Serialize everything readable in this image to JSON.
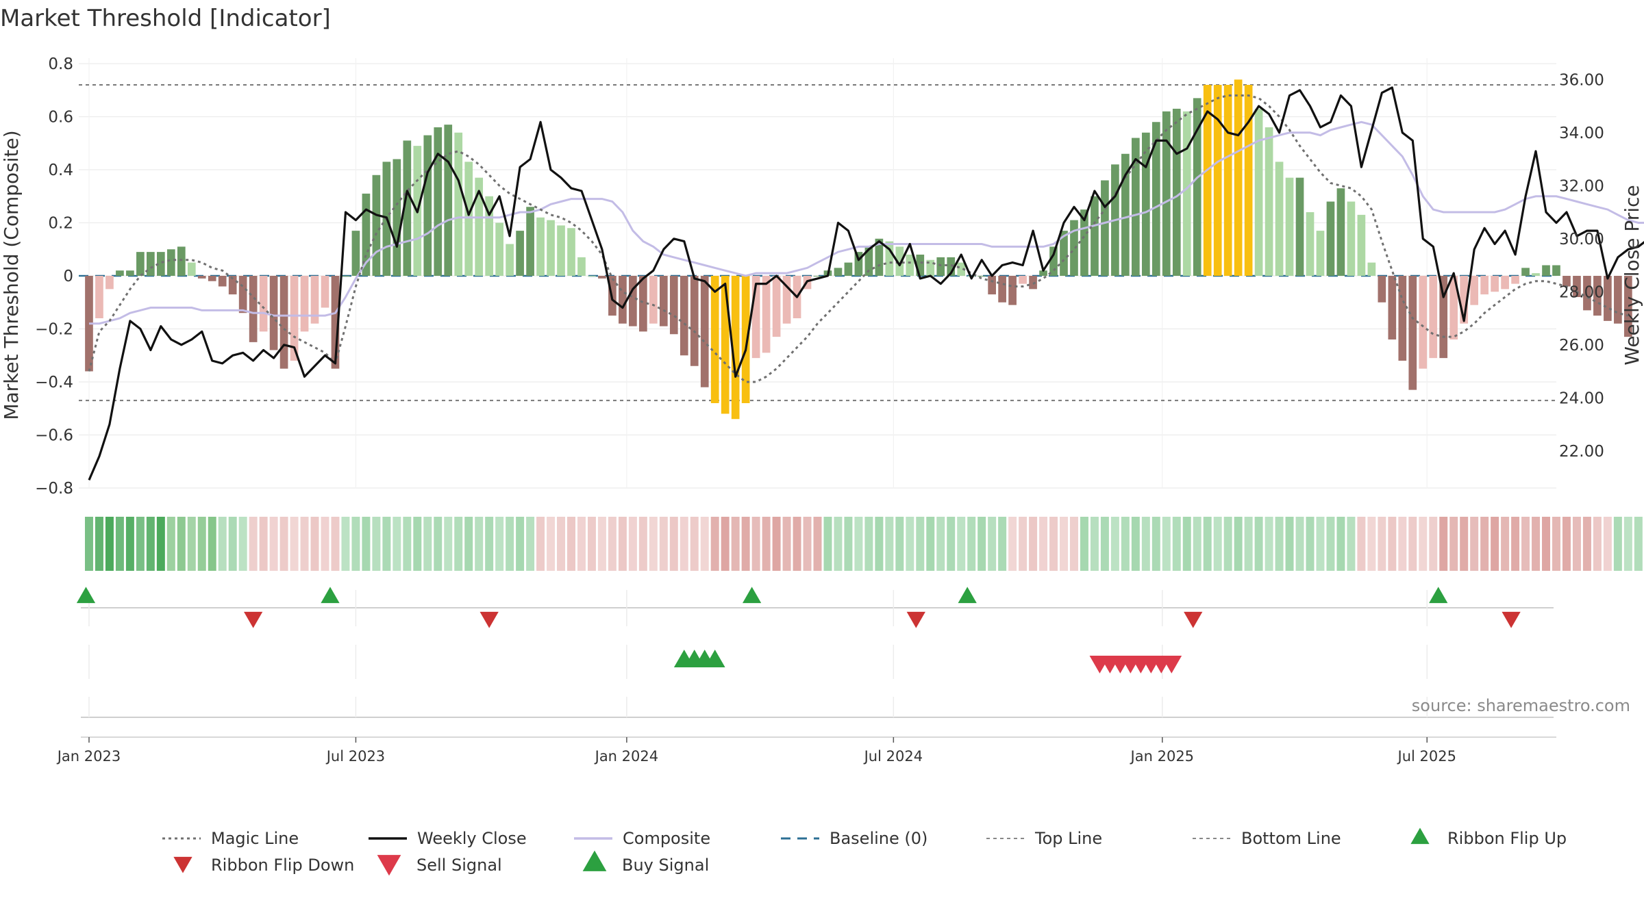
{
  "title": "Market Threshold [Indicator]",
  "source": "source: sharemaestro.com",
  "chart_data": {
    "type": "bar",
    "title": "Market Threshold [Indicator]",
    "y_left": {
      "label": "Market Threshold (Composite)",
      "range": [
        -0.8,
        0.8
      ],
      "ticks": [
        "0.8",
        "0.6",
        "0.4",
        "0.2",
        "0",
        "−0.2",
        "−0.4",
        "−0.6",
        "−0.8"
      ],
      "tick_values": [
        0.8,
        0.6,
        0.4,
        0.2,
        0,
        -0.2,
        -0.4,
        -0.6,
        -0.8
      ]
    },
    "y_right": {
      "label": "Weekly Close Price",
      "range": [
        20.6,
        36.6
      ],
      "ticks": [
        "36.00",
        "34.00",
        "32.00",
        "30.00",
        "28.00",
        "26.00",
        "24.00",
        "22.00"
      ],
      "tick_values": [
        36,
        34,
        32,
        30,
        28,
        26,
        24,
        22
      ]
    },
    "x_axis": {
      "start_week": -1,
      "end_week": 143,
      "ticks": [
        {
          "week": 0,
          "label": "Jan 2023"
        },
        {
          "week": 26,
          "label": "Jul 2023"
        },
        {
          "week": 52.4,
          "label": "Jan 2024"
        },
        {
          "week": 78.4,
          "label": "Jul 2024"
        },
        {
          "week": 104.6,
          "label": "Jan 2025"
        },
        {
          "week": 130.4,
          "label": "Jul 2025"
        }
      ]
    },
    "grid": true,
    "legend_position": "bottom",
    "top_line": 0.72,
    "bottom_line": -0.47,
    "composite_bars": [
      -0.36,
      -0.16,
      -0.05,
      0.02,
      0.02,
      0.09,
      0.09,
      0.09,
      0.1,
      0.11,
      0.05,
      -0.01,
      -0.02,
      -0.04,
      -0.07,
      -0.14,
      -0.25,
      -0.21,
      -0.28,
      -0.35,
      -0.32,
      -0.21,
      -0.18,
      -0.12,
      -0.35,
      0.0,
      0.17,
      0.31,
      0.38,
      0.43,
      0.44,
      0.51,
      0.49,
      0.53,
      0.56,
      0.57,
      0.54,
      0.43,
      0.37,
      0.3,
      0.2,
      0.12,
      0.17,
      0.26,
      0.22,
      0.21,
      0.19,
      0.18,
      0.07,
      0.0,
      -0.01,
      -0.15,
      -0.18,
      -0.19,
      -0.21,
      -0.18,
      -0.19,
      -0.22,
      -0.3,
      -0.34,
      -0.42,
      -0.48,
      -0.52,
      -0.54,
      -0.48,
      -0.31,
      -0.29,
      -0.23,
      -0.18,
      -0.16,
      -0.05,
      0.0,
      0.02,
      0.03,
      0.05,
      0.09,
      0.11,
      0.14,
      0.13,
      0.11,
      0.08,
      0.08,
      0.06,
      0.07,
      0.07,
      0.05,
      0.0,
      0.0,
      -0.07,
      -0.1,
      -0.11,
      -0.03,
      -0.05,
      0.02,
      0.11,
      0.17,
      0.21,
      0.25,
      0.3,
      0.36,
      0.42,
      0.46,
      0.52,
      0.54,
      0.58,
      0.62,
      0.63,
      0.62,
      0.67,
      0.72,
      0.72,
      0.72,
      0.74,
      0.72,
      0.63,
      0.56,
      0.43,
      0.37,
      0.37,
      0.24,
      0.17,
      0.28,
      0.33,
      0.28,
      0.23,
      0.05,
      -0.1,
      -0.24,
      -0.32,
      -0.43,
      -0.35,
      -0.31,
      -0.31,
      -0.24,
      -0.18,
      -0.11,
      -0.07,
      -0.06,
      -0.05,
      -0.03,
      0.03,
      0.01,
      0.04,
      0.04,
      -0.04,
      -0.08,
      -0.13,
      -0.15,
      -0.17,
      -0.18,
      -0.23
    ],
    "magic_line": [
      -0.36,
      -0.21,
      -0.17,
      -0.11,
      -0.05,
      0.0,
      0.03,
      0.05,
      0.06,
      0.06,
      0.06,
      0.05,
      0.03,
      0.02,
      -0.01,
      -0.04,
      -0.08,
      -0.12,
      -0.16,
      -0.2,
      -0.23,
      -0.25,
      -0.27,
      -0.29,
      -0.33,
      -0.19,
      -0.04,
      0.08,
      0.16,
      0.22,
      0.27,
      0.32,
      0.36,
      0.4,
      0.43,
      0.46,
      0.47,
      0.45,
      0.42,
      0.38,
      0.34,
      0.31,
      0.29,
      0.27,
      0.25,
      0.23,
      0.22,
      0.2,
      0.17,
      0.13,
      0.08,
      -0.01,
      -0.06,
      -0.08,
      -0.1,
      -0.11,
      -0.13,
      -0.15,
      -0.18,
      -0.21,
      -0.25,
      -0.29,
      -0.33,
      -0.37,
      -0.4,
      -0.4,
      -0.38,
      -0.35,
      -0.31,
      -0.27,
      -0.23,
      -0.18,
      -0.14,
      -0.1,
      -0.06,
      -0.02,
      0.02,
      0.04,
      0.05,
      0.05,
      0.05,
      0.05,
      0.05,
      0.04,
      0.04,
      0.03,
      0.01,
      -0.01,
      -0.02,
      -0.03,
      -0.04,
      -0.04,
      -0.03,
      -0.01,
      0.02,
      0.06,
      0.1,
      0.15,
      0.2,
      0.25,
      0.31,
      0.37,
      0.42,
      0.47,
      0.51,
      0.55,
      0.58,
      0.61,
      0.63,
      0.65,
      0.67,
      0.68,
      0.68,
      0.68,
      0.67,
      0.64,
      0.6,
      0.55,
      0.49,
      0.44,
      0.39,
      0.35,
      0.34,
      0.33,
      0.3,
      0.25,
      0.13,
      0.02,
      -0.09,
      -0.16,
      -0.19,
      -0.22,
      -0.23,
      -0.23,
      -0.21,
      -0.18,
      -0.14,
      -0.11,
      -0.08,
      -0.05,
      -0.03,
      -0.02,
      -0.02,
      -0.03,
      -0.04,
      -0.06,
      -0.08,
      -0.1,
      -0.12,
      -0.14,
      -0.15
    ],
    "composite_line": [
      -0.18,
      -0.18,
      -0.17,
      -0.16,
      -0.14,
      -0.13,
      -0.12,
      -0.12,
      -0.12,
      -0.12,
      -0.12,
      -0.13,
      -0.13,
      -0.13,
      -0.13,
      -0.13,
      -0.14,
      -0.14,
      -0.15,
      -0.15,
      -0.15,
      -0.15,
      -0.15,
      -0.15,
      -0.14,
      -0.08,
      -0.01,
      0.05,
      0.09,
      0.11,
      0.12,
      0.13,
      0.14,
      0.16,
      0.19,
      0.21,
      0.22,
      0.22,
      0.22,
      0.22,
      0.22,
      0.23,
      0.24,
      0.24,
      0.25,
      0.27,
      0.28,
      0.29,
      0.29,
      0.29,
      0.29,
      0.28,
      0.24,
      0.17,
      0.13,
      0.11,
      0.08,
      0.07,
      0.06,
      0.05,
      0.04,
      0.03,
      0.02,
      0.01,
      0.0,
      0.01,
      0.01,
      0.01,
      0.01,
      0.02,
      0.03,
      0.05,
      0.07,
      0.09,
      0.1,
      0.11,
      0.11,
      0.12,
      0.12,
      0.12,
      0.12,
      0.12,
      0.12,
      0.12,
      0.12,
      0.12,
      0.12,
      0.12,
      0.11,
      0.11,
      0.11,
      0.11,
      0.11,
      0.11,
      0.12,
      0.15,
      0.17,
      0.18,
      0.19,
      0.2,
      0.21,
      0.22,
      0.23,
      0.24,
      0.26,
      0.28,
      0.3,
      0.33,
      0.37,
      0.4,
      0.43,
      0.45,
      0.47,
      0.49,
      0.51,
      0.52,
      0.53,
      0.54,
      0.54,
      0.54,
      0.53,
      0.55,
      0.56,
      0.57,
      0.58,
      0.57,
      0.53,
      0.49,
      0.45,
      0.38,
      0.3,
      0.25,
      0.24,
      0.24,
      0.24,
      0.24,
      0.24,
      0.24,
      0.25,
      0.27,
      0.29,
      0.3,
      0.3,
      0.3,
      0.29,
      0.28,
      0.27,
      0.26,
      0.25,
      0.23,
      0.21,
      0.2,
      0.2
    ],
    "weekly_close": [
      20.9,
      21.8,
      23.0,
      25.1,
      26.9,
      26.6,
      25.8,
      26.7,
      26.2,
      26.0,
      26.2,
      26.5,
      25.4,
      25.3,
      25.6,
      25.7,
      25.4,
      25.8,
      25.5,
      26.0,
      25.9,
      24.8,
      25.2,
      25.6,
      25.3,
      31.0,
      30.7,
      31.1,
      30.9,
      30.8,
      29.7,
      31.8,
      31.0,
      32.5,
      33.2,
      32.9,
      32.2,
      30.9,
      31.8,
      30.9,
      31.6,
      30.1,
      32.7,
      33.0,
      34.4,
      32.6,
      32.3,
      31.9,
      31.8,
      30.7,
      29.6,
      27.7,
      27.4,
      28.1,
      28.5,
      28.8,
      29.6,
      30.0,
      29.9,
      28.5,
      28.4,
      28.0,
      28.3,
      24.8,
      25.8,
      28.3,
      28.3,
      28.6,
      28.2,
      27.8,
      28.4,
      28.5,
      28.6,
      30.6,
      30.3,
      29.2,
      29.6,
      29.9,
      29.6,
      29.0,
      29.8,
      28.5,
      28.6,
      28.3,
      28.7,
      29.4,
      28.5,
      29.2,
      28.6,
      29.0,
      29.1,
      29.0,
      30.3,
      28.8,
      29.4,
      30.6,
      31.2,
      30.7,
      31.8,
      31.2,
      31.6,
      32.4,
      33.0,
      32.7,
      33.7,
      33.7,
      33.2,
      33.4,
      34.1,
      34.8,
      34.5,
      34.0,
      33.9,
      34.4,
      35.0,
      34.7,
      34.0,
      35.4,
      35.6,
      35.0,
      34.2,
      34.4,
      35.4,
      35.0,
      32.7,
      34.1,
      35.5,
      35.7,
      34.0,
      33.7,
      30.0,
      29.7,
      27.8,
      28.7,
      26.9,
      29.6,
      30.4,
      29.8,
      30.3,
      29.4,
      31.6,
      33.3,
      31.0,
      30.6,
      31.0,
      30.1,
      30.3,
      30.3,
      28.5,
      29.3,
      29.6,
      29.7,
      30.0,
      30.0,
      29.9
    ],
    "ribbon_levels": [
      3,
      3,
      3,
      3,
      3,
      3,
      3,
      3,
      2,
      2,
      2,
      2,
      2,
      1,
      1,
      1,
      -1,
      -1,
      -1,
      -1,
      -1,
      -1,
      -1,
      -1,
      -1,
      1,
      1,
      1,
      1,
      1,
      1,
      1,
      1,
      1,
      1,
      1,
      1,
      1,
      1,
      1,
      1,
      1,
      1,
      1,
      -1,
      -1,
      -1,
      -1,
      -1,
      -1,
      -1,
      -1,
      -1,
      -1,
      -1,
      -1,
      -1,
      -1,
      -1,
      -1,
      -1,
      -2,
      -2,
      -2,
      -2,
      -2,
      -2,
      -2,
      -2,
      -2,
      -2,
      -2,
      1,
      1,
      1,
      1,
      1,
      1,
      1,
      1,
      1,
      1,
      1,
      1,
      1,
      1,
      1,
      1,
      1,
      1,
      -1,
      -1,
      -1,
      -1,
      -1,
      -1,
      -1,
      1,
      1,
      1,
      1,
      1,
      1,
      1,
      1,
      1,
      1,
      1,
      1,
      1,
      1,
      1,
      1,
      1,
      1,
      1,
      1,
      1,
      1,
      1,
      1,
      1,
      1,
      1,
      -1,
      -1,
      -1,
      -1,
      -1,
      -1,
      -1,
      -1,
      -2,
      -2,
      -2,
      -2,
      -2,
      -2,
      -2,
      -2,
      -2,
      -2,
      -2,
      -2,
      -2,
      -2,
      -2,
      -1,
      -1,
      1,
      1,
      1,
      1,
      1,
      1,
      1,
      1,
      1,
      -1,
      -1,
      -1,
      -1,
      -1,
      -1
    ],
    "ribbon_flip_up_weeks": [
      -0.3,
      23.5,
      64.6,
      85.6,
      131.5
    ],
    "ribbon_flip_down_weeks": [
      16,
      39,
      80.6,
      107.6,
      138.6
    ],
    "buy_signal_weeks": [
      58,
      59,
      60,
      61
    ],
    "sell_signal_weeks": [
      98.5,
      99.5,
      100.5,
      101.5,
      102.5,
      103.5,
      104.5,
      105.5
    ],
    "legend": [
      "Magic Line",
      "Weekly Close",
      "Composite",
      "Baseline (0)",
      "Top Line",
      "Bottom Line",
      "Ribbon Flip Up",
      "Ribbon Flip Down",
      "Sell Signal",
      "Buy Signal"
    ],
    "colors": {
      "bar_dark_green": "#6a9a64",
      "bar_light_green": "#add8a4",
      "bar_dark_red": "#a1716b",
      "bar_light_red": "#ebb9b5",
      "bar_extreme": "#f8bf10",
      "magic_line": "#707070",
      "weekly_close": "#111111",
      "composite_line": "#c3bce6",
      "baseline": "#2c6f94",
      "flip_up": "#2ca040",
      "flip_down": "#cc3333",
      "sell": "#dd3a4a",
      "buy": "#2ca040"
    }
  }
}
